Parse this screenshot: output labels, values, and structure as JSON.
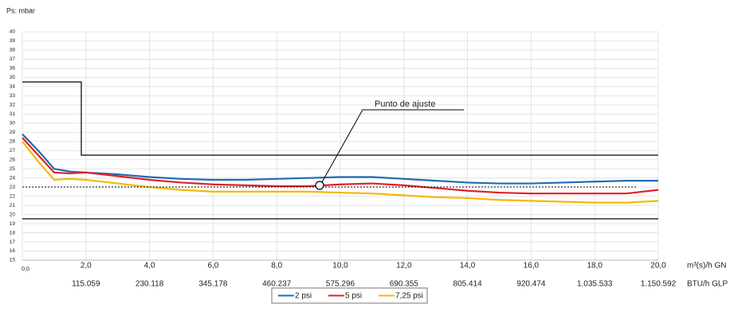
{
  "chart_data": {
    "type": "line",
    "y_axis_label": "Ps: mbar",
    "x_axis_label": "m³(s)/h GN",
    "x2_axis_label": "BTU/h GLP",
    "annotation": "Punto de ajuste",
    "x": [
      0,
      0.5,
      1,
      1.5,
      2,
      3,
      4,
      5,
      6,
      7,
      8,
      9,
      10,
      11,
      12,
      13,
      14,
      15,
      16,
      17,
      18,
      19,
      20
    ],
    "series": [
      {
        "name": "2 psi",
        "color": "#1f6bb5",
        "values": [
          28.8,
          27,
          25,
          24.7,
          24.6,
          24.4,
          24.1,
          23.9,
          23.8,
          23.8,
          23.9,
          24.0,
          24.1,
          24.1,
          23.9,
          23.7,
          23.5,
          23.4,
          23.4,
          23.5,
          23.6,
          23.7,
          23.7
        ]
      },
      {
        "name": "5 psi",
        "color": "#e0202a",
        "values": [
          28.4,
          26.5,
          24.6,
          24.5,
          24.6,
          24.2,
          23.8,
          23.5,
          23.3,
          23.2,
          23.1,
          23.1,
          23.3,
          23.4,
          23.2,
          22.9,
          22.6,
          22.4,
          22.3,
          22.3,
          22.3,
          22.3,
          22.7
        ]
      },
      {
        "name": "7,25 psi",
        "color": "#f5b800",
        "values": [
          28,
          25.8,
          23.8,
          23.9,
          23.8,
          23.4,
          23.0,
          22.7,
          22.5,
          22.5,
          22.5,
          22.5,
          22.4,
          22.3,
          22.1,
          21.9,
          21.8,
          21.6,
          21.5,
          21.4,
          21.3,
          21.3,
          21.5
        ]
      }
    ],
    "xlim": [
      0,
      20
    ],
    "xticks": [
      {
        "value": 0,
        "label": "0,0"
      },
      {
        "value": 2,
        "label": "2,0"
      },
      {
        "value": 4,
        "label": "4,0"
      },
      {
        "value": 6,
        "label": "6,0"
      },
      {
        "value": 8,
        "label": "8,0"
      },
      {
        "value": 10,
        "label": "10,0"
      },
      {
        "value": 12,
        "label": "12,0"
      },
      {
        "value": 14,
        "label": "14,0"
      },
      {
        "value": 16,
        "label": "16,0"
      },
      {
        "value": 18,
        "label": "18,0"
      },
      {
        "value": 20,
        "label": "20,0"
      }
    ],
    "x2ticks": [
      {
        "value": 2,
        "label": "115.059"
      },
      {
        "value": 4,
        "label": "230.118"
      },
      {
        "value": 6,
        "label": "345.178"
      },
      {
        "value": 8,
        "label": "460.237"
      },
      {
        "value": 10,
        "label": "575.296"
      },
      {
        "value": 12,
        "label": "690.355"
      },
      {
        "value": 14,
        "label": "805.414"
      },
      {
        "value": 16,
        "label": "920.474"
      },
      {
        "value": 18,
        "label": "1.035.533"
      },
      {
        "value": 20,
        "label": "1.150.592"
      }
    ],
    "ylim": [
      15,
      40
    ],
    "yticks": [
      15,
      16,
      17,
      18,
      19,
      20,
      21,
      22,
      23,
      24,
      25,
      26,
      27,
      28,
      29,
      30,
      31,
      32,
      33,
      34,
      35,
      36,
      37,
      38,
      39,
      40
    ],
    "grid": true,
    "legend": "bottom"
  }
}
